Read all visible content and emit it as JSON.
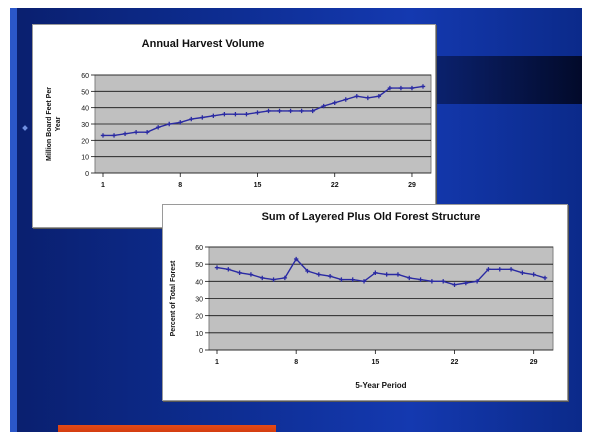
{
  "chart_data": [
    {
      "type": "line",
      "title": "Annual Harvest Volume",
      "xlabel": "",
      "ylabel": "Million Board Feet Per Year",
      "x": [
        1,
        2,
        3,
        4,
        5,
        6,
        7,
        8,
        9,
        10,
        11,
        12,
        13,
        14,
        15,
        16,
        17,
        18,
        19,
        20,
        21,
        22,
        23,
        24,
        25,
        26,
        27,
        28,
        29,
        30
      ],
      "x_ticks": [
        "1",
        "8",
        "15",
        "22",
        "29"
      ],
      "y_ticks": [
        "0",
        "10",
        "20",
        "30",
        "40",
        "50",
        "60"
      ],
      "ylim": [
        0,
        60
      ],
      "series": [
        {
          "name": "",
          "values": [
            23,
            23,
            24,
            25,
            25,
            28,
            30,
            31,
            33,
            34,
            35,
            36,
            36,
            36,
            37,
            38,
            38,
            38,
            38,
            38,
            41,
            43,
            45,
            47,
            46,
            47,
            52,
            52,
            52,
            53
          ]
        }
      ],
      "grid": true,
      "color": "#2a2aa3"
    },
    {
      "type": "line",
      "title": "Sum of Layered Plus Old Forest Structure",
      "xlabel": "5-Year Period",
      "ylabel": "Percent of Total Forest",
      "x": [
        1,
        2,
        3,
        4,
        5,
        6,
        7,
        8,
        9,
        10,
        11,
        12,
        13,
        14,
        15,
        16,
        17,
        18,
        19,
        20,
        21,
        22,
        23,
        24,
        25,
        26,
        27,
        28,
        29,
        30
      ],
      "x_ticks": [
        "1",
        "8",
        "15",
        "22",
        "29"
      ],
      "y_ticks": [
        "0",
        "10",
        "20",
        "30",
        "40",
        "50",
        "60"
      ],
      "ylim": [
        0,
        60
      ],
      "series": [
        {
          "name": "",
          "values": [
            48,
            47,
            45,
            44,
            42,
            41,
            42,
            53,
            46,
            44,
            43,
            41,
            41,
            40,
            45,
            44,
            44,
            42,
            41,
            40,
            40,
            38,
            39,
            40,
            47,
            47,
            47,
            45,
            44,
            42
          ]
        }
      ],
      "grid": true,
      "color": "#2a2aa3"
    }
  ]
}
